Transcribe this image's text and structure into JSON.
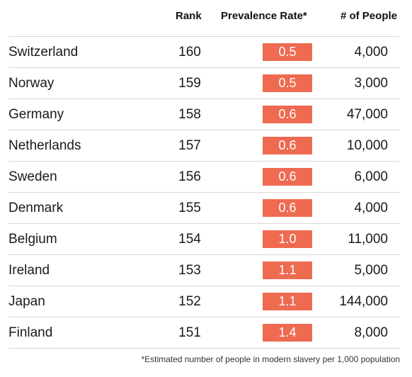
{
  "chart_data": {
    "type": "table",
    "columns": [
      "",
      "Rank",
      "Prevalence Rate*",
      "# of People"
    ],
    "rows": [
      {
        "country": "Switzerland",
        "rank": "160",
        "rate": "0.5",
        "people": "4,000"
      },
      {
        "country": "Norway",
        "rank": "159",
        "rate": "0.5",
        "people": "3,000"
      },
      {
        "country": "Germany",
        "rank": "158",
        "rate": "0.6",
        "people": "47,000"
      },
      {
        "country": "Netherlands",
        "rank": "157",
        "rate": "0.6",
        "people": "10,000"
      },
      {
        "country": "Sweden",
        "rank": "156",
        "rate": "0.6",
        "people": "6,000"
      },
      {
        "country": "Denmark",
        "rank": "155",
        "rate": "0.6",
        "people": "4,000"
      },
      {
        "country": "Belgium",
        "rank": "154",
        "rate": "1.0",
        "people": "11,000"
      },
      {
        "country": "Ireland",
        "rank": "153",
        "rate": "1.1",
        "people": "5,000"
      },
      {
        "country": "Japan",
        "rank": "152",
        "rate": "1.1",
        "people": "144,000"
      },
      {
        "country": "Finland",
        "rank": "151",
        "rate": "1.4",
        "people": "8,000"
      }
    ],
    "footnote": "*Estimated number of people in modern slavery per 1,000 population",
    "badge_color": "#ee6a50"
  }
}
